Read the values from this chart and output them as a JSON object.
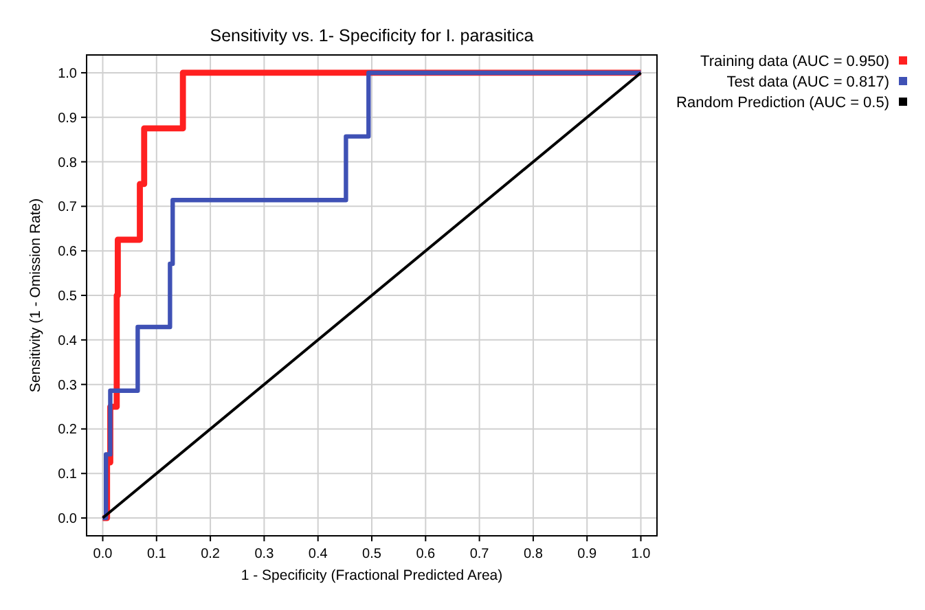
{
  "chart_data": {
    "type": "line",
    "title": "Sensitivity vs. 1- Specificity for I. parasitica",
    "xlabel": "1 - Specificity  (Fractional Predicted Area)",
    "ylabel": "Sensitivity (1 - Omission Rate)",
    "xlim": [
      -0.03,
      1.03
    ],
    "ylim": [
      -0.04,
      1.04
    ],
    "xticks": [
      {
        "value": 0,
        "label": "0.0"
      },
      0.1,
      0.2,
      0.3,
      0.4,
      0.5,
      0.6,
      0.7,
      0.8,
      0.9,
      {
        "value": 1,
        "label": "1.0"
      }
    ],
    "yticks": [
      {
        "value": 0,
        "label": "0.0"
      },
      0.1,
      0.2,
      0.3,
      0.4,
      0.5,
      0.6,
      0.7,
      0.8,
      0.9,
      {
        "value": 1,
        "label": "1.0"
      }
    ],
    "grid": true,
    "legend": "top right",
    "marker": "none",
    "line_style": "solid",
    "series": [
      {
        "name": "Training data (AUC = 0.950)",
        "color": "#ff2020",
        "x": [
          0,
          0.008,
          0.008,
          0.014,
          0.014,
          0.026,
          0.026,
          0.028,
          0.028,
          0.069,
          0.069,
          0.077,
          0.077,
          0.149,
          0.149,
          1
        ],
        "values": [
          0,
          0,
          0.125,
          0.125,
          0.25,
          0.25,
          0.5,
          0.5,
          0.625,
          0.625,
          0.75,
          0.75,
          0.875,
          0.875,
          1,
          1
        ]
      },
      {
        "name": "Test data (AUC = 0.817)",
        "color": "#3f51b5",
        "x": [
          0,
          0.006,
          0.006,
          0.014,
          0.014,
          0.065,
          0.065,
          0.125,
          0.125,
          0.13,
          0.13,
          0.452,
          0.452,
          0.494,
          0.494,
          1
        ],
        "values": [
          0,
          0,
          0.143,
          0.143,
          0.286,
          0.286,
          0.429,
          0.429,
          0.571,
          0.571,
          0.714,
          0.714,
          0.857,
          0.857,
          1,
          1
        ]
      },
      {
        "name": "Random Prediction (AUC = 0.5)",
        "color": "#000000",
        "x": [
          0,
          1
        ],
        "values": [
          0,
          1
        ]
      }
    ]
  }
}
